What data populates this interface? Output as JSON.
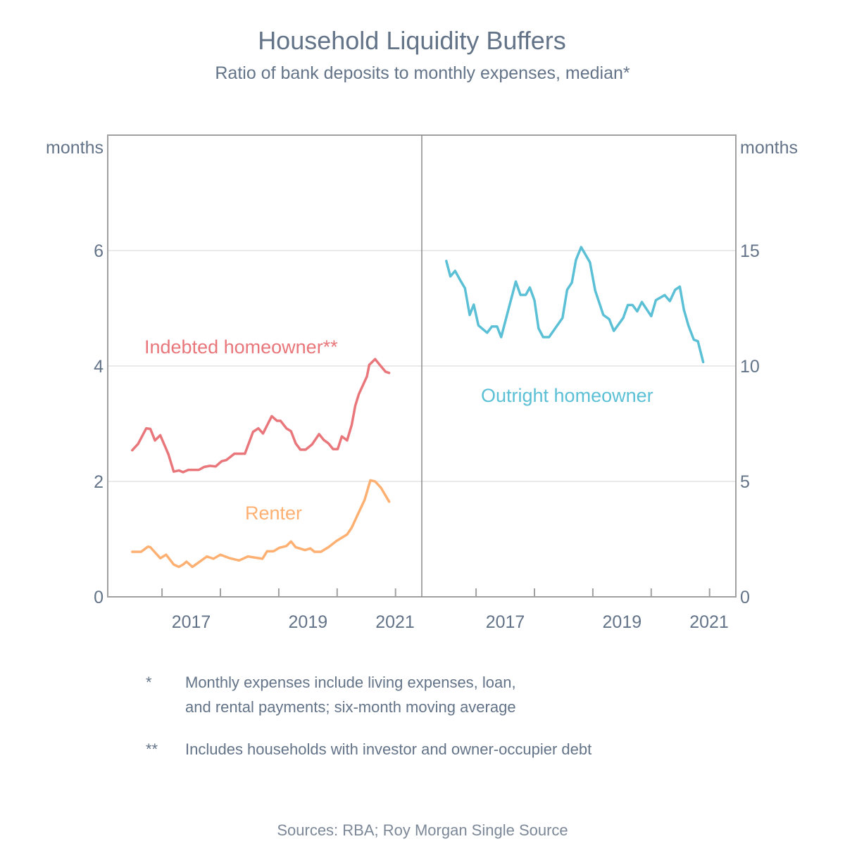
{
  "chart_data": [
    {
      "type": "line",
      "panel": "left",
      "title": "Household Liquidity Buffers",
      "subtitle": "Ratio of bank deposits to monthly expenses, median*",
      "ylabel": "months",
      "ylim": [
        0,
        8
      ],
      "yticks": [
        0,
        2,
        4,
        6
      ],
      "xlim": [
        2016.07,
        2021.45
      ],
      "xtick_labels": [
        "2017",
        "2019",
        "2021"
      ],
      "grid": true,
      "series": [
        {
          "name": "Indebted homeowner**",
          "color": "#e8767a",
          "x": [
            2016.49,
            2016.59,
            2016.73,
            2016.8,
            2016.88,
            2016.97,
            2017.11,
            2017.2,
            2017.29,
            2017.36,
            2017.45,
            2017.63,
            2017.72,
            2017.82,
            2017.92,
            2018.02,
            2018.1,
            2018.24,
            2018.42,
            2018.56,
            2018.65,
            2018.73,
            2018.88,
            2018.97,
            2019.03,
            2019.13,
            2019.21,
            2019.29,
            2019.37,
            2019.46,
            2019.57,
            2019.69,
            2019.77,
            2019.85,
            2019.93,
            2020.01,
            2020.08,
            2020.17,
            2020.25,
            2020.31,
            2020.37,
            2020.51,
            2020.55,
            2020.65,
            2020.73,
            2020.83,
            2020.89
          ],
          "y": [
            2.54,
            2.65,
            2.92,
            2.91,
            2.71,
            2.8,
            2.47,
            2.17,
            2.19,
            2.16,
            2.2,
            2.2,
            2.25,
            2.27,
            2.26,
            2.35,
            2.37,
            2.48,
            2.48,
            2.86,
            2.92,
            2.83,
            3.13,
            3.05,
            3.05,
            2.92,
            2.87,
            2.66,
            2.55,
            2.55,
            2.64,
            2.82,
            2.72,
            2.66,
            2.56,
            2.56,
            2.78,
            2.71,
            2.98,
            3.31,
            3.51,
            3.82,
            4.02,
            4.12,
            4.02,
            3.9,
            3.88
          ]
        },
        {
          "name": "Renter",
          "color": "#fdb072",
          "x": [
            2016.49,
            2016.64,
            2016.76,
            2016.8,
            2016.97,
            2017.07,
            2017.2,
            2017.29,
            2017.36,
            2017.42,
            2017.52,
            2017.62,
            2017.77,
            2017.88,
            2018.0,
            2018.16,
            2018.32,
            2018.47,
            2018.72,
            2018.8,
            2018.91,
            2019.01,
            2019.13,
            2019.21,
            2019.29,
            2019.45,
            2019.54,
            2019.61,
            2019.72,
            2019.85,
            2019.99,
            2020.17,
            2020.25,
            2020.35,
            2020.47,
            2020.57,
            2020.65,
            2020.75,
            2020.89
          ],
          "y": [
            0.78,
            0.78,
            0.87,
            0.86,
            0.67,
            0.73,
            0.56,
            0.52,
            0.56,
            0.61,
            0.52,
            0.59,
            0.7,
            0.66,
            0.73,
            0.67,
            0.63,
            0.7,
            0.66,
            0.79,
            0.79,
            0.85,
            0.88,
            0.96,
            0.86,
            0.81,
            0.84,
            0.78,
            0.78,
            0.86,
            0.97,
            1.08,
            1.2,
            1.42,
            1.68,
            2.02,
            2.0,
            1.89,
            1.65
          ]
        }
      ]
    },
    {
      "type": "line",
      "panel": "right",
      "ylabel": "months",
      "ylim": [
        0,
        20
      ],
      "yticks": [
        0,
        5,
        10,
        15
      ],
      "xlim": [
        2016.07,
        2021.45
      ],
      "xtick_labels": [
        "2017",
        "2019",
        "2021"
      ],
      "grid": true,
      "series": [
        {
          "name": "Outright homeowner",
          "color": "#5bc0d6",
          "x": [
            2016.49,
            2016.56,
            2016.64,
            2016.73,
            2016.81,
            2016.89,
            2016.96,
            2017.04,
            2017.19,
            2017.27,
            2017.36,
            2017.43,
            2017.68,
            2017.76,
            2017.85,
            2017.92,
            2018.0,
            2018.07,
            2018.15,
            2018.25,
            2018.48,
            2018.56,
            2018.64,
            2018.71,
            2018.8,
            2018.95,
            2019.04,
            2019.18,
            2019.28,
            2019.36,
            2019.52,
            2019.6,
            2019.68,
            2019.76,
            2019.84,
            2020.0,
            2020.08,
            2020.23,
            2020.32,
            2020.41,
            2020.49,
            2020.56,
            2020.64,
            2020.73,
            2020.8,
            2020.89
          ],
          "y": [
            14.55,
            13.88,
            14.12,
            13.71,
            13.37,
            12.21,
            12.66,
            11.76,
            11.44,
            11.71,
            11.71,
            11.25,
            13.66,
            13.08,
            13.08,
            13.4,
            12.84,
            11.63,
            11.25,
            11.25,
            12.08,
            13.3,
            13.61,
            14.59,
            15.15,
            14.49,
            13.27,
            12.21,
            12.03,
            11.52,
            12.08,
            12.64,
            12.64,
            12.37,
            12.77,
            12.16,
            12.85,
            13.07,
            12.81,
            13.3,
            13.44,
            12.44,
            11.73,
            11.14,
            11.07,
            10.17
          ]
        }
      ]
    }
  ],
  "header": {
    "title": "Household Liquidity Buffers",
    "subtitle": "Ratio of bank deposits to monthly expenses, median*"
  },
  "axes": {
    "left_unit": "months",
    "right_unit": "months",
    "left_ticks": [
      "0",
      "2",
      "4",
      "6"
    ],
    "right_ticks": [
      "0",
      "5",
      "10",
      "15"
    ],
    "x_labels": [
      "2017",
      "2019",
      "2021"
    ]
  },
  "footnotes": [
    {
      "marker": "*",
      "lines": [
        "Monthly expenses include living expenses, loan,",
        "and rental payments; six-month moving average"
      ]
    },
    {
      "marker": "**",
      "lines": [
        "Includes households with investor and owner-occupier debt"
      ]
    }
  ],
  "source": "Sources: RBA; Roy Morgan Single Source"
}
